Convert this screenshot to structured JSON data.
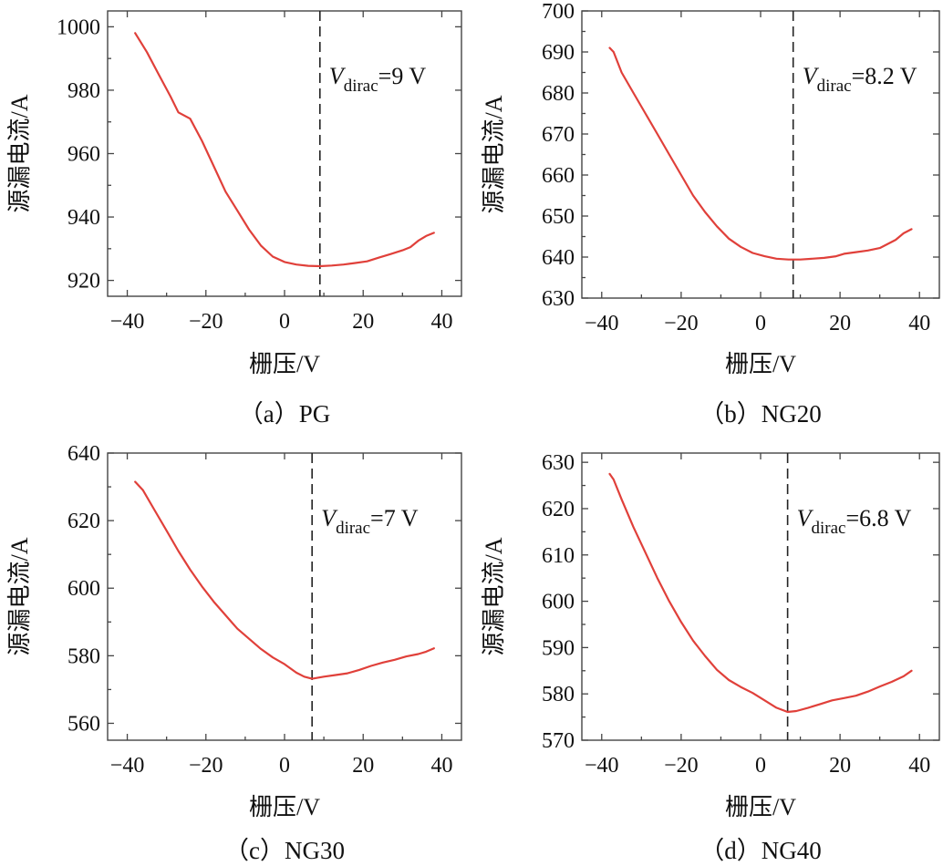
{
  "chart_data": [
    {
      "id": "a",
      "type": "line",
      "caption": "（a）PG",
      "xlabel": "栅压/V",
      "ylabel": "源漏电流/A",
      "xlim": [
        -45,
        45
      ],
      "ylim": [
        915,
        1005
      ],
      "xticks": [
        -40,
        -20,
        0,
        20,
        40
      ],
      "xtick_labels": [
        "−40",
        "−20",
        "0",
        "20",
        "40"
      ],
      "yticks": [
        920,
        940,
        960,
        980,
        1000
      ],
      "ytick_labels": [
        "920",
        "940",
        "960",
        "980",
        "1000"
      ],
      "dirac": {
        "x": 9,
        "prefix": "V",
        "sub": "dirac",
        "suffix": "=9 V"
      },
      "series": [
        {
          "name": "PG",
          "color": "#e0403a",
          "x": [
            -38,
            -35,
            -32,
            -29,
            -27,
            -24,
            -21,
            -18,
            -15,
            -12,
            -9,
            -6,
            -3,
            0,
            3,
            6,
            9,
            12,
            15,
            18,
            21,
            24,
            27,
            30,
            32,
            34,
            36,
            38
          ],
          "y": [
            998,
            992,
            985,
            978,
            973,
            971,
            964,
            956,
            948,
            942,
            936,
            931,
            927.5,
            925.8,
            925,
            924.6,
            924.5,
            924.7,
            925,
            925.5,
            926,
            927.2,
            928.3,
            929.5,
            930.5,
            932.5,
            934,
            935
          ]
        }
      ]
    },
    {
      "id": "b",
      "type": "line",
      "caption": "（b）NG20",
      "xlabel": "栅压/V",
      "ylabel": "源漏电流/A",
      "xlim": [
        -45,
        45
      ],
      "ylim": [
        630,
        700
      ],
      "xticks": [
        -40,
        -20,
        0,
        20,
        40
      ],
      "xtick_labels": [
        "−40",
        "−20",
        "0",
        "20",
        "40"
      ],
      "yticks": [
        630,
        640,
        650,
        660,
        670,
        680,
        690,
        700
      ],
      "ytick_labels": [
        "630",
        "640",
        "650",
        "660",
        "670",
        "680",
        "690",
        "700"
      ],
      "dirac": {
        "x": 8.2,
        "prefix": "V",
        "sub": "dirac",
        "suffix": "=8.2 V"
      },
      "series": [
        {
          "name": "NG20",
          "color": "#e0403a",
          "x": [
            -38,
            -37,
            -35,
            -32,
            -29,
            -26,
            -23,
            -20,
            -17,
            -14,
            -11,
            -8,
            -5,
            -2,
            1,
            4,
            7,
            10,
            13,
            16,
            19,
            21,
            24,
            27,
            30,
            32,
            34,
            36,
            38
          ],
          "y": [
            691,
            690,
            685,
            680,
            675,
            670,
            665,
            660,
            655,
            651,
            647.5,
            644.5,
            642.5,
            641,
            640.2,
            639.6,
            639.4,
            639.4,
            639.6,
            639.8,
            640.2,
            640.8,
            641.2,
            641.6,
            642.2,
            643.2,
            644.2,
            645.8,
            646.8
          ]
        }
      ]
    },
    {
      "id": "c",
      "type": "line",
      "caption": "（c）NG30",
      "xlabel": "栅压/V",
      "ylabel": "源漏电流/A",
      "xlim": [
        -45,
        45
      ],
      "ylim": [
        555,
        640
      ],
      "xticks": [
        -40,
        -20,
        0,
        20,
        40
      ],
      "xtick_labels": [
        "−40",
        "−20",
        "0",
        "20",
        "40"
      ],
      "yticks": [
        560,
        580,
        600,
        620,
        640
      ],
      "ytick_labels": [
        "560",
        "580",
        "600",
        "620",
        "640"
      ],
      "dirac": {
        "x": 7,
        "prefix": "V",
        "sub": "dirac",
        "suffix": "=7 V"
      },
      "series": [
        {
          "name": "NG30",
          "color": "#e0403a",
          "x": [
            -38,
            -36,
            -33,
            -30,
            -27,
            -24,
            -21,
            -18,
            -15,
            -12,
            -9,
            -6,
            -3,
            0,
            3,
            5,
            7,
            10,
            13,
            16,
            19,
            22,
            25,
            28,
            31,
            34,
            36,
            38
          ],
          "y": [
            631.5,
            629,
            623,
            617,
            611,
            605.5,
            600.5,
            596,
            592,
            588,
            585,
            582,
            579.5,
            577.5,
            575,
            573.8,
            573.2,
            573.8,
            574.3,
            574.8,
            575.8,
            577,
            578,
            578.8,
            579.8,
            580.5,
            581.2,
            582.2
          ]
        }
      ]
    },
    {
      "id": "d",
      "type": "line",
      "caption": "（d）NG40",
      "xlabel": "栅压/V",
      "ylabel": "源漏电流/A",
      "xlim": [
        -45,
        45
      ],
      "ylim": [
        570,
        632
      ],
      "xticks": [
        -40,
        -20,
        0,
        20,
        40
      ],
      "xtick_labels": [
        "−40",
        "−20",
        "0",
        "20",
        "40"
      ],
      "yticks": [
        570,
        580,
        590,
        600,
        610,
        620,
        630
      ],
      "ytick_labels": [
        "570",
        "580",
        "590",
        "600",
        "610",
        "620",
        "630"
      ],
      "dirac": {
        "x": 6.8,
        "prefix": "V",
        "sub": "dirac",
        "suffix": "=6.8 V"
      },
      "series": [
        {
          "name": "NG40",
          "color": "#e0403a",
          "x": [
            -38,
            -37,
            -35,
            -32,
            -29,
            -26,
            -23,
            -20,
            -17,
            -14,
            -11,
            -8,
            -5,
            -2,
            1,
            4,
            6.8,
            9,
            12,
            15,
            18,
            21,
            24,
            27,
            30,
            33,
            36,
            38
          ],
          "y": [
            627.5,
            626.3,
            622,
            616,
            610.5,
            605,
            600,
            595.5,
            591.5,
            588.2,
            585.2,
            583,
            581.5,
            580.2,
            578.6,
            577,
            576.1,
            576.3,
            577,
            577.8,
            578.6,
            579.1,
            579.6,
            580.5,
            581.6,
            582.6,
            583.8,
            585
          ]
        }
      ]
    }
  ]
}
